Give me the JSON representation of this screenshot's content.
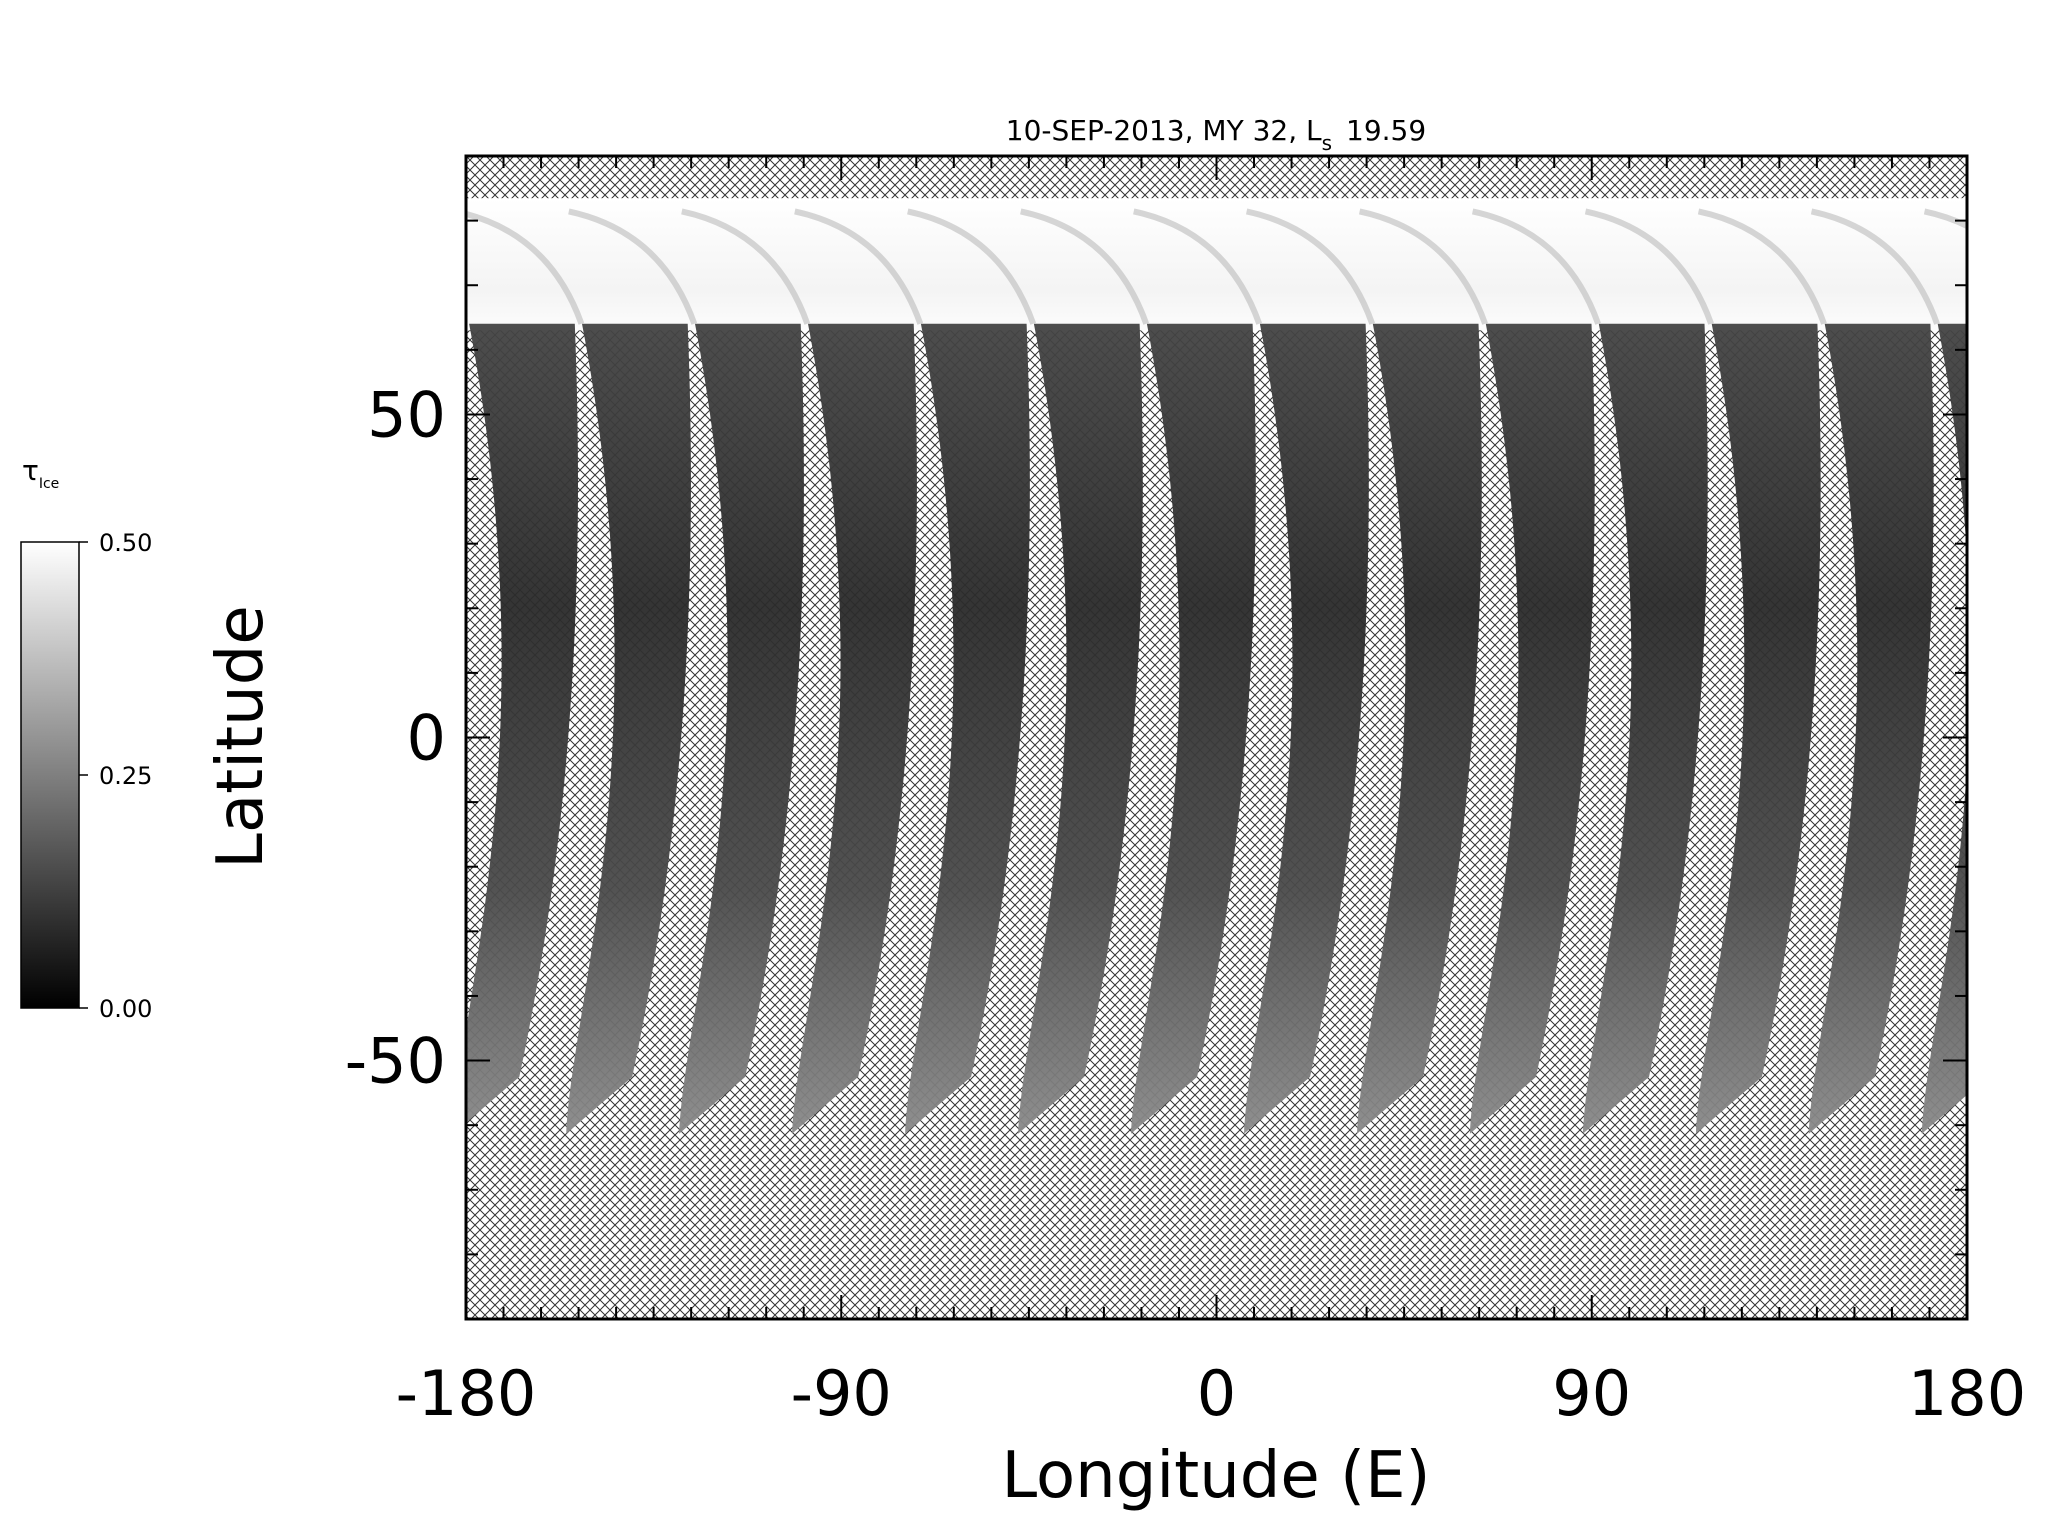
{
  "chart_data": {
    "type": "map",
    "title": {
      "main": "10-SEP-2013, MY 32,  L",
      "sub": "s",
      "tail": "19.59"
    },
    "xlabel": "Longitude (E)",
    "ylabel": "Latitude",
    "xlim": [
      -180,
      180
    ],
    "xticks": [
      -180,
      -90,
      0,
      90,
      180
    ],
    "xminorticks": [
      -171,
      -162,
      -153,
      -144,
      -135,
      -126,
      -117,
      -108,
      -99,
      -81,
      -72,
      -63,
      -54,
      -45,
      -36,
      -27,
      -18,
      -9,
      9,
      18,
      27,
      36,
      45,
      54,
      63,
      72,
      81,
      99,
      108,
      117,
      126,
      135,
      144,
      153,
      162,
      171
    ],
    "ylim": [
      -90,
      90
    ],
    "yticks": [
      -50,
      0,
      50
    ],
    "yminorticks": [
      -80,
      -70,
      -60,
      -40,
      -30,
      -20,
      -10,
      10,
      20,
      30,
      40,
      60,
      70,
      80
    ],
    "colorbar": {
      "label": "τ",
      "label_sub": "Ice",
      "lim": [
        0,
        0.5
      ],
      "ticks": [
        {
          "value": 0,
          "label": "0.00"
        },
        {
          "value": 0.25,
          "label": "0.25"
        },
        {
          "value": 0.5,
          "label": "0.50"
        }
      ],
      "colors": [
        "#000000",
        "#ffffff"
      ]
    }
  }
}
